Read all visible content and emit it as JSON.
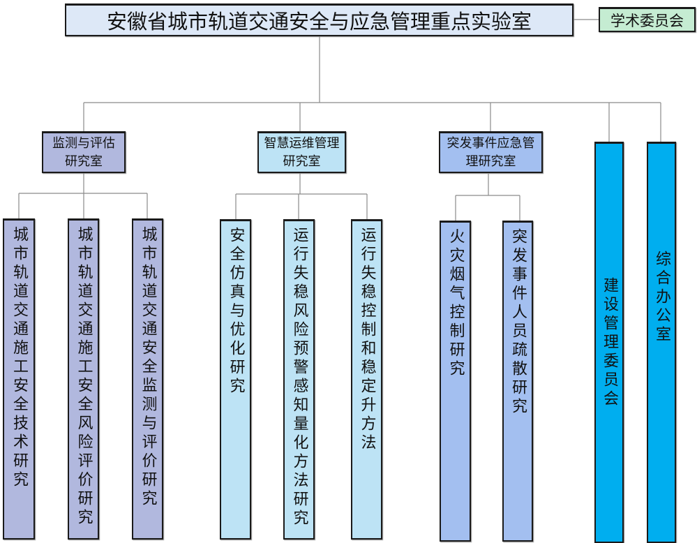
{
  "title": "安徽省城市轨道交通安全与应急管理重点实验室",
  "committee": "学术委员会",
  "colors": {
    "title_bg": "#dde8f7",
    "committee_bg": "#c5ecd2",
    "group1": "#b1b8de",
    "group2": "#bde3f5",
    "group3": "#a3bff0",
    "standalone": "#00aeef"
  },
  "departments": [
    {
      "label": "监测与评估研究室",
      "children": [
        "城市轨道交通施工安全技术研究",
        "城市轨道交通施工安全风险评价研究",
        "城市轨道交通安全监测与评价研究"
      ]
    },
    {
      "label": "智慧运维管理研究室",
      "children": [
        "安全仿真与优化研究",
        "运行失稳风险预警感知量化方法研究",
        "运行失稳控制和稳定升方法"
      ]
    },
    {
      "label": "突发事件应急管理研究室",
      "children": [
        "火灾烟气控制研究",
        "突发事件人员疏散研究"
      ]
    }
  ],
  "standalone": [
    "建设管理委员会",
    "综合办公室"
  ]
}
